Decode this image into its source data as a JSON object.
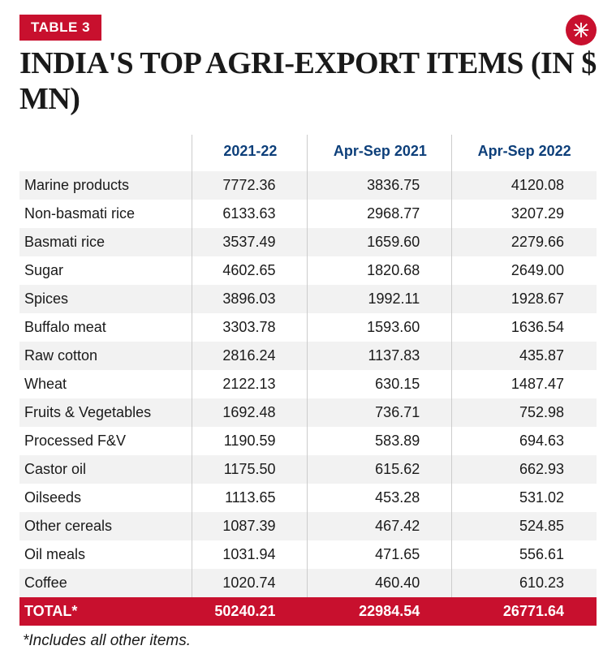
{
  "badge": "TABLE 3",
  "title": "INDIA'S TOP AGRI-EXPORT ITEMS (IN $ MN)",
  "footnote": "*Includes all other items.",
  "colors": {
    "brand_red": "#c8102e",
    "header_blue": "#0d3f7a",
    "row_alt": "#f2f2f2",
    "text": "#1a1a1a",
    "divider": "#cccccc",
    "white": "#ffffff"
  },
  "fonts": {
    "title_family": "Georgia",
    "title_size_pt": 29,
    "body_family": "Arial",
    "body_size_pt": 14,
    "header_size_pt": 14
  },
  "columns": [
    "",
    "2021-22",
    "Apr-Sep 2021",
    "Apr-Sep 2022"
  ],
  "col_widths_pct": [
    30,
    20,
    25,
    25
  ],
  "rows": [
    {
      "label": "Marine products",
      "v": [
        "7772.36",
        "3836.75",
        "4120.08"
      ]
    },
    {
      "label": "Non-basmati rice",
      "v": [
        "6133.63",
        "2968.77",
        "3207.29"
      ]
    },
    {
      "label": "Basmati rice",
      "v": [
        "3537.49",
        "1659.60",
        "2279.66"
      ]
    },
    {
      "label": "Sugar",
      "v": [
        "4602.65",
        "1820.68",
        "2649.00"
      ]
    },
    {
      "label": "Spices",
      "v": [
        "3896.03",
        "1992.11",
        "1928.67"
      ]
    },
    {
      "label": "Buffalo meat",
      "v": [
        "3303.78",
        "1593.60",
        "1636.54"
      ]
    },
    {
      "label": "Raw cotton",
      "v": [
        "2816.24",
        "1137.83",
        "435.87"
      ]
    },
    {
      "label": "Wheat",
      "v": [
        "2122.13",
        "630.15",
        "1487.47"
      ]
    },
    {
      "label": "Fruits & Vegetables",
      "v": [
        "1692.48",
        "736.71",
        "752.98"
      ]
    },
    {
      "label": "Processed F&V",
      "v": [
        "1190.59",
        "583.89",
        "694.63"
      ]
    },
    {
      "label": "Castor oil",
      "v": [
        "1175.50",
        "615.62",
        "662.93"
      ]
    },
    {
      "label": "Oilseeds",
      "v": [
        "1113.65",
        "453.28",
        "531.02"
      ]
    },
    {
      "label": "Other cereals",
      "v": [
        "1087.39",
        "467.42",
        "524.85"
      ]
    },
    {
      "label": "Oil meals",
      "v": [
        "1031.94",
        "471.65",
        "556.61"
      ]
    },
    {
      "label": "Coffee",
      "v": [
        "1020.74",
        "460.40",
        "610.23"
      ]
    }
  ],
  "total": {
    "label": "TOTAL*",
    "v": [
      "50240.21",
      "22984.54",
      "26771.64"
    ]
  }
}
